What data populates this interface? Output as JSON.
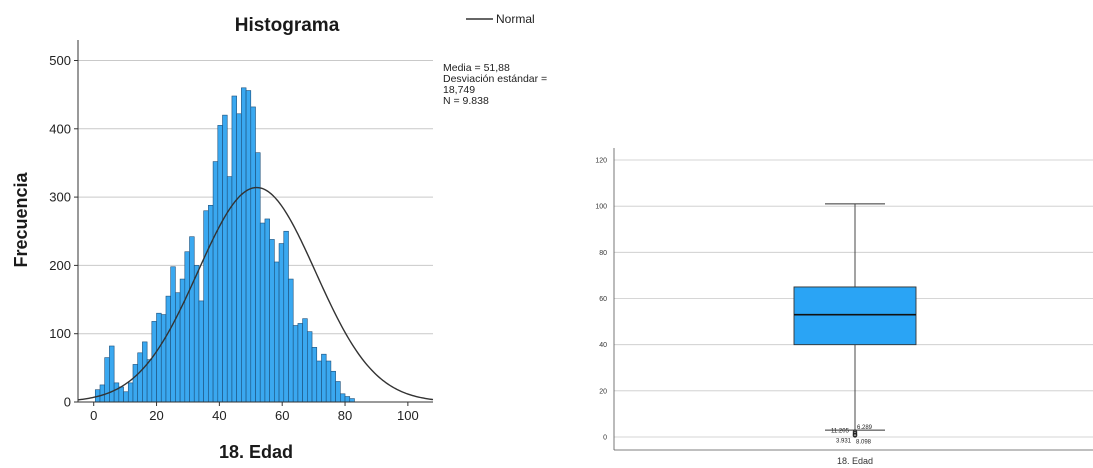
{
  "colors": {
    "bar_fill": "#3aa8f0",
    "bar_stroke": "#1c4f7a",
    "curve": "#333333",
    "grid": "#c9c9c9",
    "box_fill": "#2aa4f5"
  },
  "chart_data": [
    {
      "type": "bar",
      "title": "Histograma",
      "xlabel": "18. Edad",
      "ylabel": "Frecuencia",
      "xlim": [
        -5,
        108
      ],
      "ylim": [
        0,
        530
      ],
      "x_ticks": [
        0,
        20,
        40,
        60,
        80,
        100
      ],
      "y_ticks": [
        0,
        100,
        200,
        300,
        400,
        500
      ],
      "grid": true,
      "bin_width": 1.5,
      "bins_start": 0.5,
      "values": [
        18,
        25,
        65,
        82,
        28,
        22,
        15,
        28,
        55,
        72,
        88,
        62,
        118,
        130,
        128,
        155,
        198,
        160,
        180,
        220,
        242,
        200,
        148,
        280,
        288,
        352,
        405,
        420,
        330,
        448,
        422,
        460,
        456,
        432,
        365,
        262,
        268,
        238,
        205,
        232,
        250,
        180,
        112,
        115,
        122,
        103,
        80,
        60,
        70,
        60,
        45,
        30,
        12,
        8,
        5
      ],
      "normal_curve": {
        "mean": 51.88,
        "sd": 18.749,
        "n": 9838,
        "label": "Normal"
      },
      "legend": [
        "Normal"
      ],
      "legend_position": "top-right",
      "stats": {
        "media": "Media = 51,88",
        "desv_1": "Desviación estándar =",
        "desv_2": "18,749",
        "n": "N = 9.838"
      }
    },
    {
      "type": "boxplot",
      "xlabel": "18. Edad",
      "ylim": [
        0,
        125
      ],
      "y_ticks": [
        0,
        20,
        40,
        60,
        80,
        100,
        120
      ],
      "grid": true,
      "box": {
        "min": 3,
        "q1": 40,
        "median": 53,
        "q3": 65,
        "max": 101
      },
      "outliers": [
        {
          "value": 1.6,
          "label": "11.205"
        },
        {
          "value": 2.2,
          "label": "6.289"
        },
        {
          "value": 1.0,
          "label": "3.931"
        },
        {
          "value": 0.7,
          "label": "8.098"
        }
      ]
    }
  ]
}
